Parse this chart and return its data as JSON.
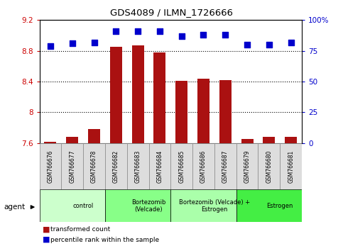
{
  "title": "GDS4089 / ILMN_1726666",
  "samples": [
    "GSM766676",
    "GSM766677",
    "GSM766678",
    "GSM766682",
    "GSM766683",
    "GSM766684",
    "GSM766685",
    "GSM766686",
    "GSM766687",
    "GSM766679",
    "GSM766680",
    "GSM766681"
  ],
  "bar_values": [
    7.62,
    7.68,
    7.78,
    8.85,
    8.87,
    8.78,
    8.41,
    8.44,
    8.42,
    7.65,
    7.68,
    7.68
  ],
  "percentile_values": [
    79,
    81,
    82,
    91,
    91,
    91,
    87,
    88,
    88,
    80,
    80,
    82
  ],
  "bar_color": "#AA1111",
  "dot_color": "#0000CC",
  "ylim_left": [
    7.6,
    9.2
  ],
  "ylim_right": [
    0,
    100
  ],
  "yticks_left": [
    7.6,
    8.0,
    8.4,
    8.8,
    9.2
  ],
  "yticks_right": [
    0,
    25,
    50,
    75,
    100
  ],
  "ytick_labels_left": [
    "7.6",
    "8",
    "8.4",
    "8.8",
    "9.2"
  ],
  "ytick_labels_right": [
    "0",
    "25",
    "50",
    "75",
    "100%"
  ],
  "groups": [
    {
      "label": "control",
      "start": 0,
      "end": 3,
      "color": "#CCFFCC"
    },
    {
      "label": "Bortezomib\n(Velcade)",
      "start": 3,
      "end": 6,
      "color": "#88FF88"
    },
    {
      "label": "Bortezomib (Velcade) +\nEstrogen",
      "start": 6,
      "end": 9,
      "color": "#AAFFAA"
    },
    {
      "label": "Estrogen",
      "start": 9,
      "end": 12,
      "color": "#44EE44"
    }
  ],
  "legend_bar_label": "transformed count",
  "legend_dot_label": "percentile rank within the sample",
  "agent_label": "agent",
  "tick_label_color_left": "#CC0000",
  "tick_label_color_right": "#0000CC",
  "bar_width": 0.55,
  "dot_size": 30,
  "grid_yticks": [
    8.0,
    8.4,
    8.8
  ]
}
